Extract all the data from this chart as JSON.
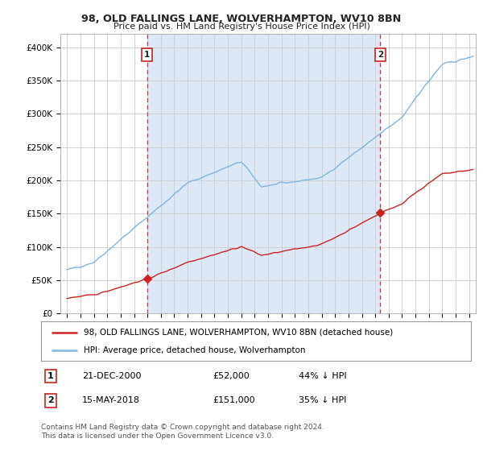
{
  "title1": "98, OLD FALLINGS LANE, WOLVERHAMPTON, WV10 8BN",
  "title2": "Price paid vs. HM Land Registry's House Price Index (HPI)",
  "plot_bg": "#ffffff",
  "shade_color": "#dce8f5",
  "sale1_date": 2000.97,
  "sale1_price": 52000,
  "sale1_label": "1",
  "sale2_date": 2018.37,
  "sale2_price": 151000,
  "sale2_label": "2",
  "legend1": "98, OLD FALLINGS LANE, WOLVERHAMPTON, WV10 8BN (detached house)",
  "legend2": "HPI: Average price, detached house, Wolverhampton",
  "footer": "Contains HM Land Registry data © Crown copyright and database right 2024.\nThis data is licensed under the Open Government Licence v3.0.",
  "ylabel_ticks": [
    "£0",
    "£50K",
    "£100K",
    "£150K",
    "£200K",
    "£250K",
    "£300K",
    "£350K",
    "£400K"
  ],
  "ytick_vals": [
    0,
    50000,
    100000,
    150000,
    200000,
    250000,
    300000,
    350000,
    400000
  ],
  "xmin": 1994.5,
  "xmax": 2025.5,
  "ymin": 0,
  "ymax": 420000
}
